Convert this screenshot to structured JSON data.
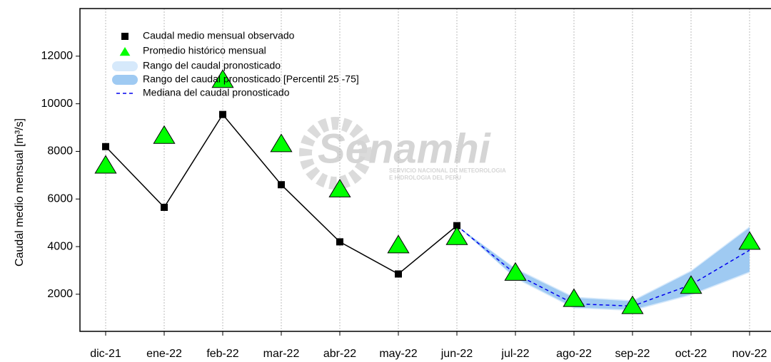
{
  "chart_data": {
    "type": "line",
    "ylabel": "Caudal medio mensual  [m³/s]",
    "categories": [
      "dic-21",
      "ene-22",
      "feb-22",
      "mar-22",
      "abr-22",
      "may-22",
      "jun-22",
      "jul-22",
      "ago-22",
      "sep-22",
      "oct-22",
      "nov-22"
    ],
    "ylim": [
      440,
      14000
    ],
    "yticks": [
      2000,
      4000,
      6000,
      8000,
      10000,
      12000
    ],
    "grid": true,
    "legend": "upper left",
    "watermark": {
      "title": "Senamhi",
      "line1": "SERVICIO NACIONAL DE METEOROLOGIA",
      "line2": "E HIDROLOGIA DEL PERU"
    },
    "bands": [
      {
        "name": "Rango del caudal pronosticado",
        "color": "#d6e9fb",
        "lower": [
          null,
          null,
          null,
          null,
          null,
          null,
          4880,
          2650,
          1400,
          1300,
          1950,
          2900
        ],
        "upper": [
          null,
          null,
          null,
          null,
          null,
          null,
          4880,
          3100,
          1900,
          1750,
          3000,
          4850
        ]
      },
      {
        "name": "Rango del caudal pronosticado [Percentil 25 -75]",
        "color": "#9fcaf2",
        "lower": [
          null,
          null,
          null,
          null,
          null,
          null,
          4880,
          2700,
          1450,
          1350,
          2000,
          2950
        ],
        "upper": [
          null,
          null,
          null,
          null,
          null,
          null,
          4880,
          3050,
          1850,
          1700,
          2950,
          4800
        ]
      }
    ],
    "series": [
      {
        "name": "Caudal medio mensual observado",
        "color": "#000000",
        "marker": "square",
        "values": [
          8200,
          5650,
          9550,
          6600,
          4200,
          2850,
          4880,
          null,
          null,
          null,
          null,
          null
        ]
      },
      {
        "name": "Promedio histórico mensual",
        "color": "#00ff00",
        "marker": "triangle",
        "values": [
          7400,
          8650,
          11000,
          8300,
          6400,
          4050,
          4400,
          2900,
          1800,
          1500,
          2350,
          4200
        ]
      },
      {
        "name": "Mediana del caudal pronosticado",
        "color": "#0000ee",
        "marker": "dashed",
        "values": [
          null,
          null,
          null,
          null,
          null,
          null,
          4880,
          2850,
          1600,
          1500,
          2400,
          3850
        ]
      }
    ]
  }
}
